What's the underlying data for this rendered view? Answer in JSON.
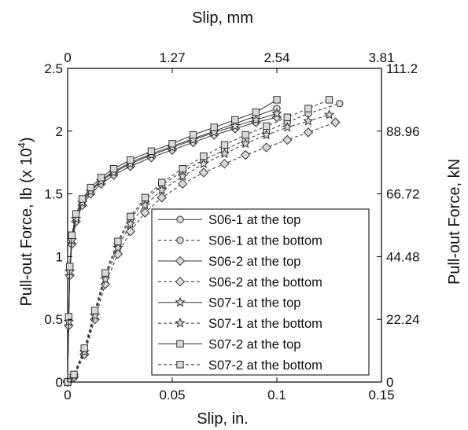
{
  "chart_data": {
    "type": "line",
    "xlabel_bottom": "Slip, in.",
    "xlabel_top": "Slip, mm",
    "ylabel_left_prefix": "Pull-out Force, lb (x 10",
    "ylabel_left_exp": "4",
    "ylabel_left_suffix": ")",
    "ylabel_right": "Pull-out Force, kN",
    "xlim": [
      0,
      0.15
    ],
    "ylim": [
      0,
      2.5
    ],
    "x_ticks": [
      {
        "value": 0,
        "label": "0"
      },
      {
        "value": 0.05,
        "label": "0.05"
      },
      {
        "value": 0.1,
        "label": "0.1"
      },
      {
        "value": 0.15,
        "label": "0.15"
      }
    ],
    "y_ticks": [
      {
        "value": 0,
        "label": "0"
      },
      {
        "value": 0.5,
        "label": "0.5"
      },
      {
        "value": 1,
        "label": "1"
      },
      {
        "value": 1.5,
        "label": "1.5"
      },
      {
        "value": 2,
        "label": "2"
      },
      {
        "value": 2.5,
        "label": "2.5"
      }
    ],
    "top_ticks": [
      {
        "value": 0,
        "label": "0"
      },
      {
        "value": 0.05,
        "label": "1.27"
      },
      {
        "value": 0.1,
        "label": "2.54"
      },
      {
        "value": 0.15,
        "label": "3.81"
      }
    ],
    "right_ticks": [
      {
        "value": 0,
        "label": "0"
      },
      {
        "value": 0.5,
        "label": "22.24"
      },
      {
        "value": 1,
        "label": "44.48"
      },
      {
        "value": 1.5,
        "label": "66.72"
      },
      {
        "value": 2,
        "label": "88.96"
      },
      {
        "value": 2.5,
        "label": "111.2"
      }
    ],
    "legend_position": "bottom-right",
    "grid": false,
    "series": [
      {
        "name": "S06-1 at the top",
        "marker": "circle",
        "dash": false,
        "points": [
          [
            0,
            0
          ],
          [
            0.0005,
            0.5
          ],
          [
            0.001,
            0.9
          ],
          [
            0.002,
            1.15
          ],
          [
            0.004,
            1.32
          ],
          [
            0.007,
            1.44
          ],
          [
            0.011,
            1.53
          ],
          [
            0.016,
            1.61
          ],
          [
            0.022,
            1.68
          ],
          [
            0.03,
            1.75
          ],
          [
            0.04,
            1.82
          ],
          [
            0.05,
            1.88
          ],
          [
            0.06,
            1.94
          ],
          [
            0.07,
            2.0
          ],
          [
            0.08,
            2.06
          ],
          [
            0.09,
            2.12
          ],
          [
            0.1,
            2.18
          ]
        ]
      },
      {
        "name": "S06-1 at the bottom",
        "marker": "circle",
        "dash": true,
        "points": [
          [
            0,
            0
          ],
          [
            0.003,
            0.05
          ],
          [
            0.008,
            0.25
          ],
          [
            0.013,
            0.55
          ],
          [
            0.018,
            0.85
          ],
          [
            0.024,
            1.1
          ],
          [
            0.03,
            1.3
          ],
          [
            0.037,
            1.45
          ],
          [
            0.045,
            1.57
          ],
          [
            0.055,
            1.68
          ],
          [
            0.065,
            1.77
          ],
          [
            0.075,
            1.85
          ],
          [
            0.085,
            1.93
          ],
          [
            0.095,
            2.0
          ],
          [
            0.105,
            2.07
          ],
          [
            0.115,
            2.14
          ],
          [
            0.13,
            2.22
          ]
        ]
      },
      {
        "name": "S06-2 at the top",
        "marker": "diamond",
        "dash": false,
        "points": [
          [
            0,
            0
          ],
          [
            0.0005,
            0.45
          ],
          [
            0.001,
            0.85
          ],
          [
            0.002,
            1.1
          ],
          [
            0.004,
            1.28
          ],
          [
            0.007,
            1.41
          ],
          [
            0.011,
            1.5
          ],
          [
            0.016,
            1.58
          ],
          [
            0.022,
            1.65
          ],
          [
            0.03,
            1.72
          ],
          [
            0.04,
            1.79
          ],
          [
            0.05,
            1.85
          ],
          [
            0.06,
            1.91
          ],
          [
            0.07,
            1.97
          ],
          [
            0.08,
            2.02
          ],
          [
            0.09,
            2.07
          ],
          [
            0.1,
            2.11
          ]
        ]
      },
      {
        "name": "S06-2 at the bottom",
        "marker": "diamond",
        "dash": true,
        "points": [
          [
            0,
            0
          ],
          [
            0.003,
            0.04
          ],
          [
            0.008,
            0.22
          ],
          [
            0.013,
            0.5
          ],
          [
            0.018,
            0.78
          ],
          [
            0.024,
            1.02
          ],
          [
            0.03,
            1.2
          ],
          [
            0.037,
            1.35
          ],
          [
            0.045,
            1.47
          ],
          [
            0.055,
            1.58
          ],
          [
            0.065,
            1.67
          ],
          [
            0.075,
            1.74
          ],
          [
            0.085,
            1.81
          ],
          [
            0.095,
            1.87
          ],
          [
            0.105,
            1.93
          ],
          [
            0.115,
            1.99
          ],
          [
            0.128,
            2.07
          ]
        ]
      },
      {
        "name": "S07-1 at the top",
        "marker": "star",
        "dash": false,
        "points": [
          [
            0,
            0
          ],
          [
            0.0005,
            0.48
          ],
          [
            0.001,
            0.88
          ],
          [
            0.002,
            1.13
          ],
          [
            0.004,
            1.3
          ],
          [
            0.007,
            1.43
          ],
          [
            0.011,
            1.52
          ],
          [
            0.016,
            1.6
          ],
          [
            0.022,
            1.67
          ],
          [
            0.03,
            1.74
          ],
          [
            0.04,
            1.81
          ],
          [
            0.05,
            1.87
          ],
          [
            0.06,
            1.93
          ],
          [
            0.07,
            1.99
          ],
          [
            0.08,
            2.04
          ],
          [
            0.09,
            2.09
          ],
          [
            0.1,
            2.14
          ]
        ]
      },
      {
        "name": "S07-1 at the bottom",
        "marker": "star",
        "dash": true,
        "points": [
          [
            0,
            0
          ],
          [
            0.003,
            0.05
          ],
          [
            0.008,
            0.24
          ],
          [
            0.013,
            0.53
          ],
          [
            0.018,
            0.82
          ],
          [
            0.024,
            1.07
          ],
          [
            0.03,
            1.26
          ],
          [
            0.037,
            1.41
          ],
          [
            0.045,
            1.53
          ],
          [
            0.055,
            1.64
          ],
          [
            0.065,
            1.74
          ],
          [
            0.075,
            1.82
          ],
          [
            0.085,
            1.9
          ],
          [
            0.095,
            1.97
          ],
          [
            0.105,
            2.03
          ],
          [
            0.115,
            2.08
          ],
          [
            0.125,
            2.13
          ]
        ]
      },
      {
        "name": "S07-2 at the top",
        "marker": "square",
        "dash": false,
        "points": [
          [
            0,
            0
          ],
          [
            0.0005,
            0.52
          ],
          [
            0.001,
            0.92
          ],
          [
            0.002,
            1.17
          ],
          [
            0.004,
            1.34
          ],
          [
            0.007,
            1.46
          ],
          [
            0.011,
            1.55
          ],
          [
            0.016,
            1.63
          ],
          [
            0.022,
            1.7
          ],
          [
            0.03,
            1.77
          ],
          [
            0.04,
            1.84
          ],
          [
            0.05,
            1.9
          ],
          [
            0.06,
            1.97
          ],
          [
            0.07,
            2.03
          ],
          [
            0.08,
            2.09
          ],
          [
            0.09,
            2.15
          ],
          [
            0.1,
            2.25
          ]
        ]
      },
      {
        "name": "S07-2 at the bottom",
        "marker": "square",
        "dash": true,
        "points": [
          [
            0,
            0
          ],
          [
            0.003,
            0.06
          ],
          [
            0.008,
            0.27
          ],
          [
            0.013,
            0.57
          ],
          [
            0.018,
            0.87
          ],
          [
            0.024,
            1.12
          ],
          [
            0.03,
            1.32
          ],
          [
            0.037,
            1.47
          ],
          [
            0.045,
            1.59
          ],
          [
            0.055,
            1.7
          ],
          [
            0.065,
            1.8
          ],
          [
            0.075,
            1.89
          ],
          [
            0.085,
            1.97
          ],
          [
            0.095,
            2.04
          ],
          [
            0.105,
            2.11
          ],
          [
            0.115,
            2.18
          ],
          [
            0.125,
            2.25
          ]
        ]
      }
    ]
  }
}
